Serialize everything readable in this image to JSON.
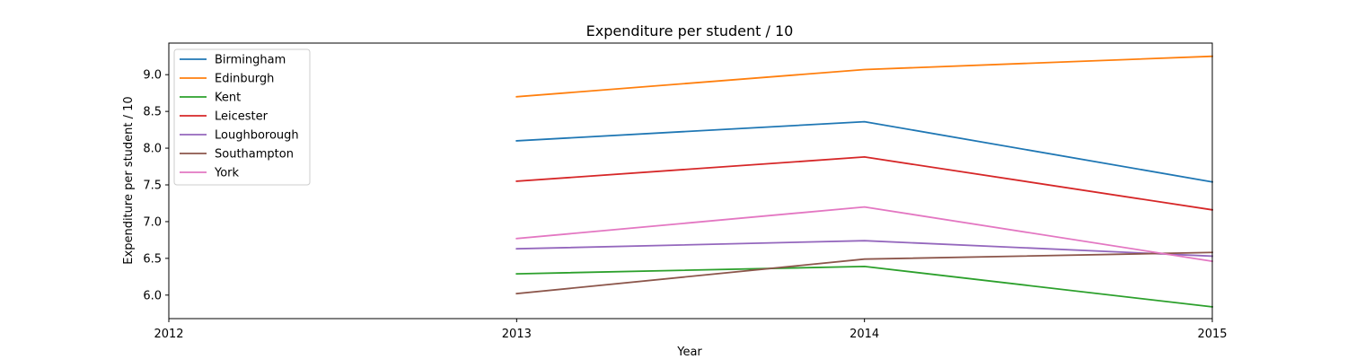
{
  "chart_data": {
    "type": "line",
    "title": "Expenditure per student / 10",
    "xlabel": "Year",
    "ylabel": "Expenditure per student / 10",
    "x": [
      2013,
      2014,
      2015
    ],
    "xticks": [
      "2012",
      "2013",
      "2014",
      "2015"
    ],
    "yticks": [
      "6.0",
      "6.5",
      "7.0",
      "7.5",
      "8.0",
      "8.5",
      "9.0"
    ],
    "xlim": [
      2012,
      2015
    ],
    "ylim": [
      5.68,
      9.43
    ],
    "grid": false,
    "legend_position": "top-left",
    "series": [
      {
        "name": "Birmingham",
        "color": "#1f77b4",
        "values": [
          8.1,
          8.36,
          7.54
        ]
      },
      {
        "name": "Edinburgh",
        "color": "#ff7f0e",
        "values": [
          8.7,
          9.07,
          9.25
        ]
      },
      {
        "name": "Kent",
        "color": "#2ca02c",
        "values": [
          6.29,
          6.39,
          5.84
        ]
      },
      {
        "name": "Leicester",
        "color": "#d62728",
        "values": [
          7.55,
          7.88,
          7.16
        ]
      },
      {
        "name": "Loughborough",
        "color": "#9467bd",
        "values": [
          6.63,
          6.74,
          6.53
        ]
      },
      {
        "name": "Southampton",
        "color": "#8c564b",
        "values": [
          6.02,
          6.49,
          6.58
        ]
      },
      {
        "name": "York",
        "color": "#e377c2",
        "values": [
          6.77,
          7.2,
          6.46
        ]
      }
    ]
  }
}
